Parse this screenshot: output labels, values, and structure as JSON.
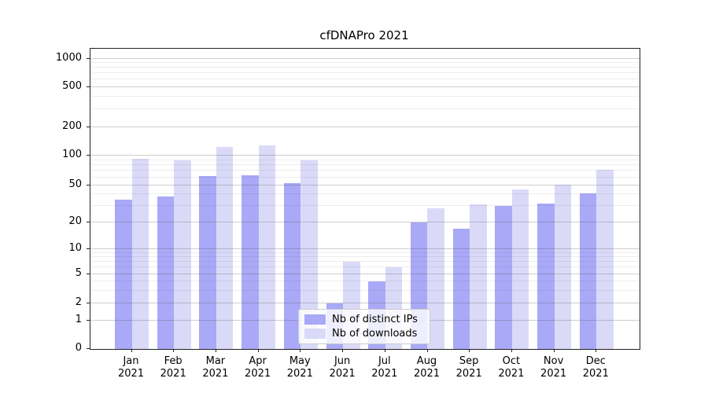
{
  "figure": {
    "title": "cfDNAPro 2021"
  },
  "chart_data": {
    "type": "bar",
    "title": "cfDNAPro 2021",
    "categories": [
      "Jan",
      "Feb",
      "Mar",
      "Apr",
      "May",
      "Jun",
      "Jul",
      "Aug",
      "Sep",
      "Oct",
      "Nov",
      "Dec"
    ],
    "year": "2021",
    "series": [
      {
        "name": "Nb of distinct IPs",
        "key": "ips",
        "color": "#a9a9f7",
        "values": [
          35,
          38,
          62,
          63,
          53,
          2,
          4,
          20,
          17,
          30,
          32,
          41
        ]
      },
      {
        "name": "Nb of downloads",
        "key": "downloads",
        "color": "#dadaf8",
        "values": [
          92,
          90,
          123,
          128,
          90,
          7,
          6,
          28,
          31,
          45,
          51,
          72
        ]
      }
    ],
    "y_axis": {
      "scale": "log-like (0, then log ticks)",
      "ticks": [
        0,
        1,
        2,
        5,
        10,
        20,
        50,
        100,
        200,
        500,
        1000
      ],
      "range": [
        0,
        1000
      ],
      "grid": true
    },
    "x_axis": {
      "label_format": "Month over Year (two lines)"
    },
    "legend": {
      "entries": [
        "Nb of distinct IPs",
        "Nb of downloads"
      ],
      "position": "inside plot, lower center"
    }
  },
  "colors": {
    "ips_bar": "#a9a9f7",
    "downloads_bar": "#dadaf8",
    "major_gridline": "#cecece",
    "minor_gridline": "#ededed",
    "axis": "#222222"
  }
}
